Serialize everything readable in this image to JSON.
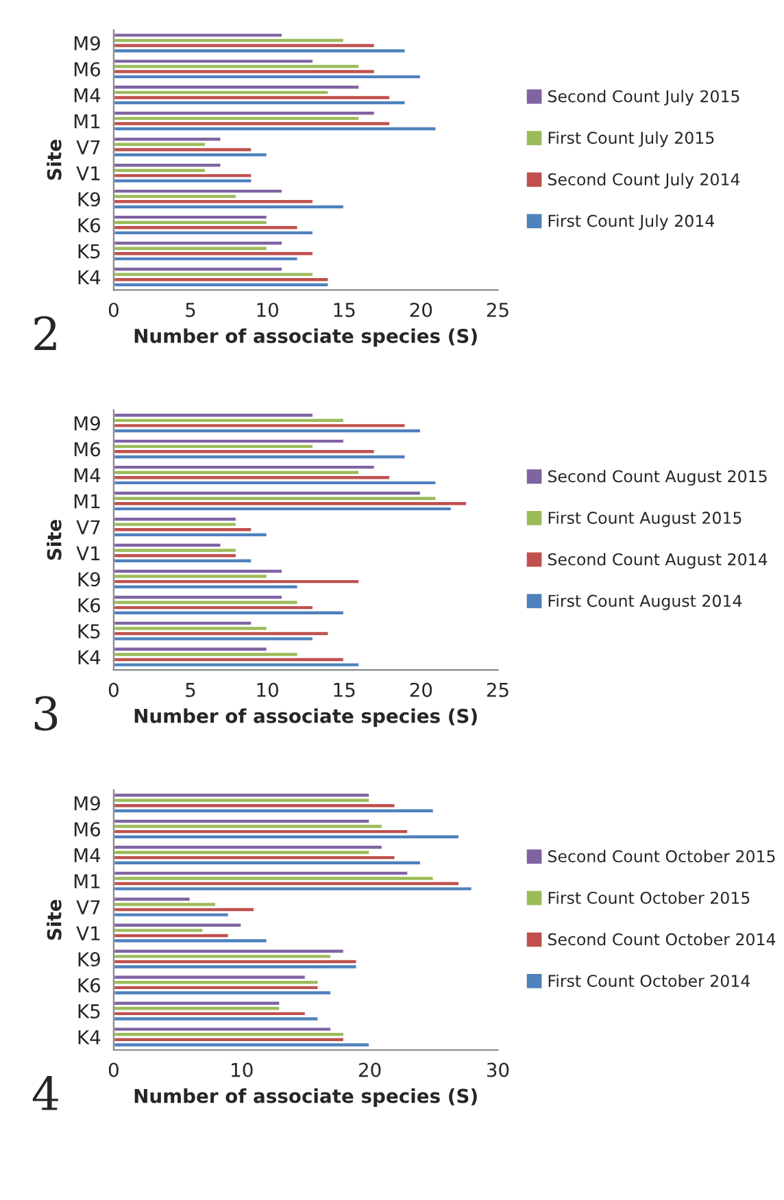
{
  "chart_data": [
    {
      "type": "bar",
      "orientation": "horizontal",
      "xlabel": "Number of associate species (S)",
      "ylabel": "Site",
      "annotations": [
        "2"
      ],
      "categories": [
        "M9",
        "M6",
        "M4",
        "M1",
        "V7",
        "V1",
        "K9",
        "K6",
        "K5",
        "K4"
      ],
      "series": [
        {
          "name": "First Count July 2014",
          "color": "#4f81bd",
          "values": [
            19,
            20,
            19,
            21,
            10,
            9,
            15,
            13,
            12,
            14
          ]
        },
        {
          "name": "Second Count July 2014",
          "color": "#c0504d",
          "values": [
            17,
            17,
            18,
            18,
            9,
            9,
            13,
            12,
            13,
            14
          ]
        },
        {
          "name": "First Count July 2015",
          "color": "#9bbb59",
          "values": [
            15,
            16,
            14,
            16,
            6,
            6,
            8,
            10,
            10,
            13
          ]
        },
        {
          "name": "Second Count July 2015",
          "color": "#8064a2",
          "values": [
            11,
            13,
            16,
            17,
            7,
            7,
            11,
            10,
            11,
            11
          ]
        }
      ],
      "xlim": [
        0,
        25
      ],
      "xticks": [
        0,
        5,
        10,
        15,
        20,
        25
      ],
      "grid": false,
      "legend": "right"
    },
    {
      "type": "bar",
      "orientation": "horizontal",
      "xlabel": "Number of associate species (S)",
      "ylabel": "Site",
      "annotations": [
        "3"
      ],
      "categories": [
        "M9",
        "M6",
        "M4",
        "M1",
        "V7",
        "V1",
        "K9",
        "K6",
        "K5",
        "K4"
      ],
      "series": [
        {
          "name": "First Count August 2014",
          "color": "#4f81bd",
          "values": [
            20,
            19,
            21,
            22,
            10,
            9,
            12,
            15,
            13,
            16
          ]
        },
        {
          "name": "Second Count August 2014",
          "color": "#c0504d",
          "values": [
            19,
            17,
            18,
            23,
            9,
            8,
            16,
            13,
            14,
            15
          ]
        },
        {
          "name": "First Count August 2015",
          "color": "#9bbb59",
          "values": [
            15,
            13,
            16,
            21,
            8,
            8,
            10,
            12,
            10,
            12
          ]
        },
        {
          "name": "Second Count August 2015",
          "color": "#8064a2",
          "values": [
            13,
            15,
            17,
            20,
            8,
            7,
            11,
            11,
            9,
            10
          ]
        }
      ],
      "xlim": [
        0,
        25
      ],
      "xticks": [
        0,
        5,
        10,
        15,
        20,
        25
      ],
      "grid": false,
      "legend": "right"
    },
    {
      "type": "bar",
      "orientation": "horizontal",
      "xlabel": "Number of associate species (S)",
      "ylabel": "Site",
      "annotations": [
        "4"
      ],
      "categories": [
        "M9",
        "M6",
        "M4",
        "M1",
        "V7",
        "V1",
        "K9",
        "K6",
        "K5",
        "K4"
      ],
      "series": [
        {
          "name": "First Count October 2014",
          "color": "#4f81bd",
          "values": [
            25,
            27,
            24,
            28,
            9,
            12,
            19,
            17,
            16,
            20
          ]
        },
        {
          "name": "Second Count October 2014",
          "color": "#c0504d",
          "values": [
            22,
            23,
            22,
            27,
            11,
            9,
            19,
            16,
            15,
            18
          ]
        },
        {
          "name": "First Count October 2015",
          "color": "#9bbb59",
          "values": [
            20,
            21,
            20,
            25,
            8,
            7,
            17,
            16,
            13,
            18
          ]
        },
        {
          "name": "Second Count October 2015",
          "color": "#8064a2",
          "values": [
            20,
            20,
            21,
            23,
            6,
            10,
            18,
            15,
            13,
            17
          ]
        }
      ],
      "xlim": [
        0,
        30
      ],
      "xticks": [
        0,
        10,
        20,
        30
      ],
      "grid": false,
      "legend": "right"
    }
  ]
}
